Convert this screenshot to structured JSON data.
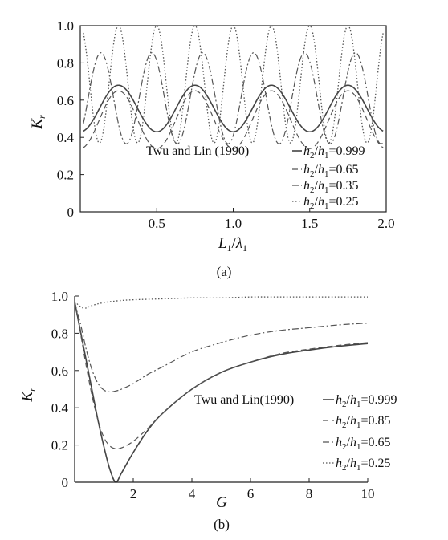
{
  "chart_data": [
    {
      "panel": "(a)",
      "type": "line",
      "xlabel_main": "L",
      "xlabel_sub1": "1",
      "xlabel_slash": "/",
      "xlabel_main2": "λ",
      "xlabel_sub2": "1",
      "ylabel_main": "K",
      "ylabel_sub": "r",
      "xlim": [
        0,
        2.0
      ],
      "ylim": [
        0,
        1.0
      ],
      "xticks": [
        "0.5",
        "1.0",
        "1.5",
        "2.0"
      ],
      "xtick_values": [
        0.5,
        1.0,
        1.5,
        2.0
      ],
      "yticks": [
        "0",
        "0.2",
        "0.4",
        "0.6",
        "0.8",
        "1.0"
      ],
      "ytick_values": [
        0,
        0.2,
        0.4,
        0.6,
        0.8,
        1.0
      ],
      "grid": false,
      "legend_heading": "Twu and Lin (1990)",
      "legend_position": "right-lower",
      "series": [
        {
          "label": "h2/h1=0.999",
          "ratio": "0.999",
          "style": "solid",
          "mean": 0.555,
          "amplitude": 0.125,
          "period": 0.5,
          "phase": 0,
          "min": 0.43,
          "max": 0.68
        },
        {
          "label": "h2/h1=0.65",
          "ratio": "0.65",
          "style": "dashed",
          "mean": 0.495,
          "amplitude": 0.155,
          "period": 0.5,
          "phase": 0,
          "min": 0.34,
          "max": 0.65
        },
        {
          "label": "h2/h1=0.35",
          "ratio": "0.35",
          "style": "dashdot",
          "mean": 0.61,
          "amplitude": 0.245,
          "period": 0.333,
          "phase": 0.6,
          "min": 0.365,
          "max": 0.855
        },
        {
          "label": "h2/h1=0.25",
          "ratio": "0.25",
          "style": "dotted",
          "mean": 0.685,
          "amplitude": 0.315,
          "period": 0.25,
          "phase": 3.14159,
          "min": 0.37,
          "max": 1.0
        }
      ]
    },
    {
      "panel": "(b)",
      "type": "line",
      "xlabel": "G",
      "ylabel_main": "K",
      "ylabel_sub": "r",
      "xlim": [
        0,
        10
      ],
      "ylim": [
        0,
        1.0
      ],
      "xticks": [
        "2",
        "4",
        "6",
        "8",
        "10"
      ],
      "xtick_values": [
        2,
        4,
        6,
        8,
        10
      ],
      "yticks": [
        "0",
        "0.2",
        "0.4",
        "0.6",
        "0.8",
        "1.0"
      ],
      "ytick_values": [
        0,
        0.2,
        0.4,
        0.6,
        0.8,
        1.0
      ],
      "grid": false,
      "legend_heading": "Twu and Lin(1990)",
      "legend_position": "right-middle",
      "series": [
        {
          "label": "h2/h1=0.999",
          "ratio": "0.999",
          "style": "solid",
          "x": [
            0,
            0.2,
            0.4,
            0.6,
            0.8,
            1.0,
            1.2,
            1.4,
            1.6,
            2.0,
            2.5,
            3,
            4,
            5,
            6,
            7,
            8,
            9,
            10
          ],
          "y": [
            0.97,
            0.81,
            0.65,
            0.49,
            0.33,
            0.19,
            0.07,
            0.0,
            0.05,
            0.16,
            0.28,
            0.37,
            0.5,
            0.59,
            0.645,
            0.685,
            0.71,
            0.73,
            0.745
          ]
        },
        {
          "label": "h2/h1=0.85",
          "ratio": "0.85",
          "style": "dashed",
          "x": [
            0,
            0.2,
            0.4,
            0.6,
            0.8,
            1.0,
            1.2,
            1.4,
            1.6,
            2.0,
            2.5,
            3,
            4,
            5,
            6,
            7,
            8,
            9,
            10
          ],
          "y": [
            0.97,
            0.8,
            0.62,
            0.46,
            0.33,
            0.24,
            0.195,
            0.18,
            0.185,
            0.22,
            0.29,
            0.37,
            0.5,
            0.59,
            0.645,
            0.69,
            0.715,
            0.735,
            0.75
          ]
        },
        {
          "label": "h2/h1=0.65",
          "ratio": "0.65",
          "style": "dashdot",
          "x": [
            0,
            0.2,
            0.4,
            0.6,
            0.8,
            1.0,
            1.2,
            1.4,
            1.6,
            2.0,
            2.5,
            3,
            4,
            5,
            6,
            7,
            8,
            9,
            10
          ],
          "y": [
            0.97,
            0.85,
            0.71,
            0.6,
            0.53,
            0.495,
            0.485,
            0.49,
            0.5,
            0.53,
            0.58,
            0.62,
            0.7,
            0.75,
            0.79,
            0.815,
            0.83,
            0.845,
            0.855
          ]
        },
        {
          "label": "h2/h1=0.25",
          "ratio": "0.25",
          "style": "dotted",
          "x": [
            0,
            0.3,
            0.6,
            1.0,
            1.5,
            2,
            3,
            4,
            5,
            6,
            7,
            8,
            9,
            10
          ],
          "y": [
            0.97,
            0.935,
            0.95,
            0.965,
            0.975,
            0.98,
            0.985,
            0.99,
            0.99,
            0.995,
            0.995,
            0.995,
            0.995,
            0.995
          ]
        }
      ]
    }
  ]
}
